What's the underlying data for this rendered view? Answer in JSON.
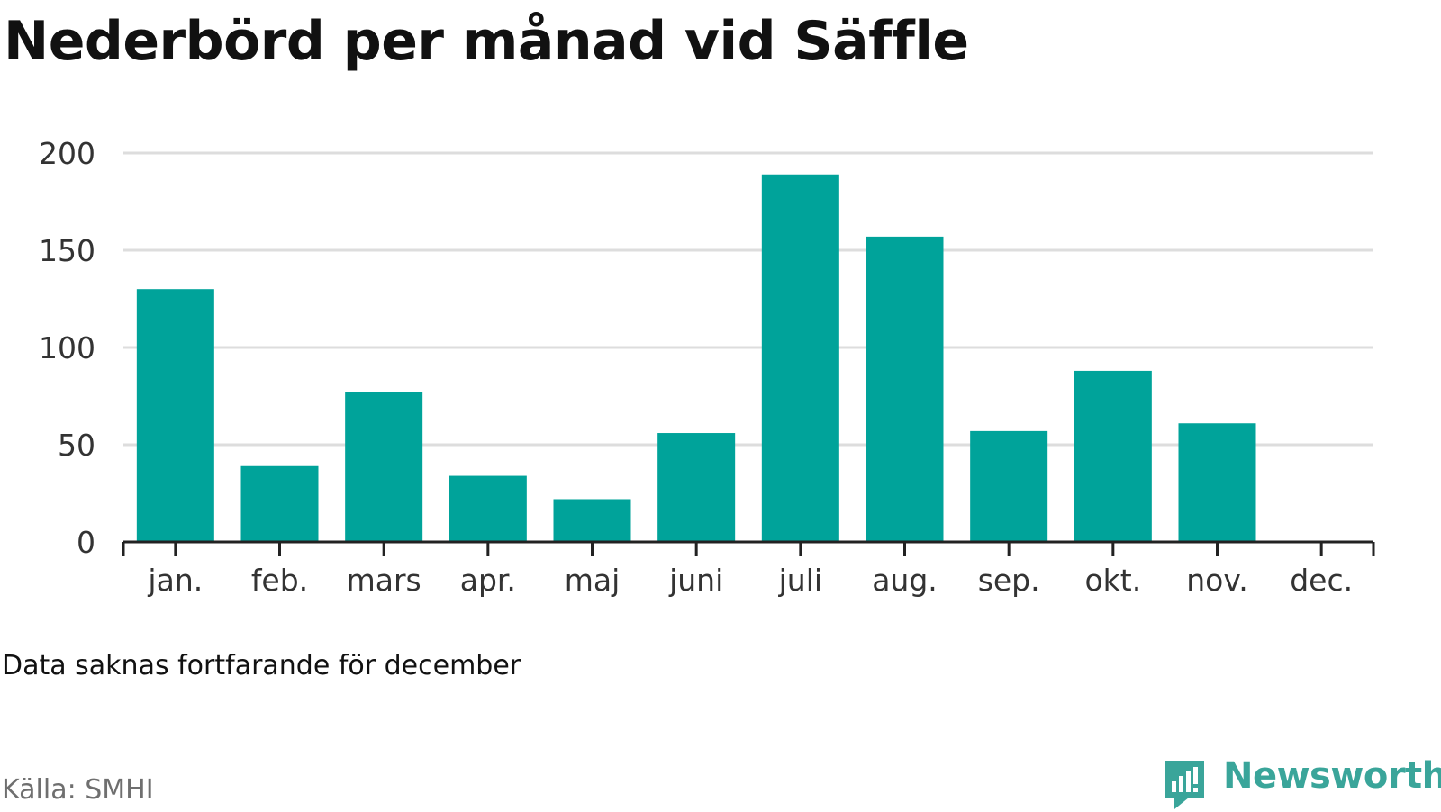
{
  "title": "Nederbörd per månad vid Säffle",
  "note": "Data saknas fortfarande för december",
  "source": "Källa: SMHI",
  "brand": {
    "name": "Newsworthy",
    "icon": "newsworthy-logo-icon",
    "color": "#3aa59a"
  },
  "colors": {
    "bar": "#00a39a",
    "grid": "#dddddd",
    "axis": "#222222",
    "tick_label": "#333333"
  },
  "chart_data": {
    "type": "bar",
    "title": "Nederbörd per månad vid Säffle",
    "xlabel": "",
    "ylabel": "",
    "categories": [
      "jan.",
      "feb.",
      "mars",
      "apr.",
      "maj",
      "juni",
      "juli",
      "aug.",
      "sep.",
      "okt.",
      "nov.",
      "dec."
    ],
    "values": [
      130,
      39,
      77,
      34,
      22,
      56,
      189,
      157,
      57,
      88,
      61,
      null
    ],
    "ylim": [
      0,
      200
    ],
    "yticks": [
      "0",
      "50",
      "100",
      "150",
      "200"
    ],
    "grid": true,
    "legend": "none"
  }
}
